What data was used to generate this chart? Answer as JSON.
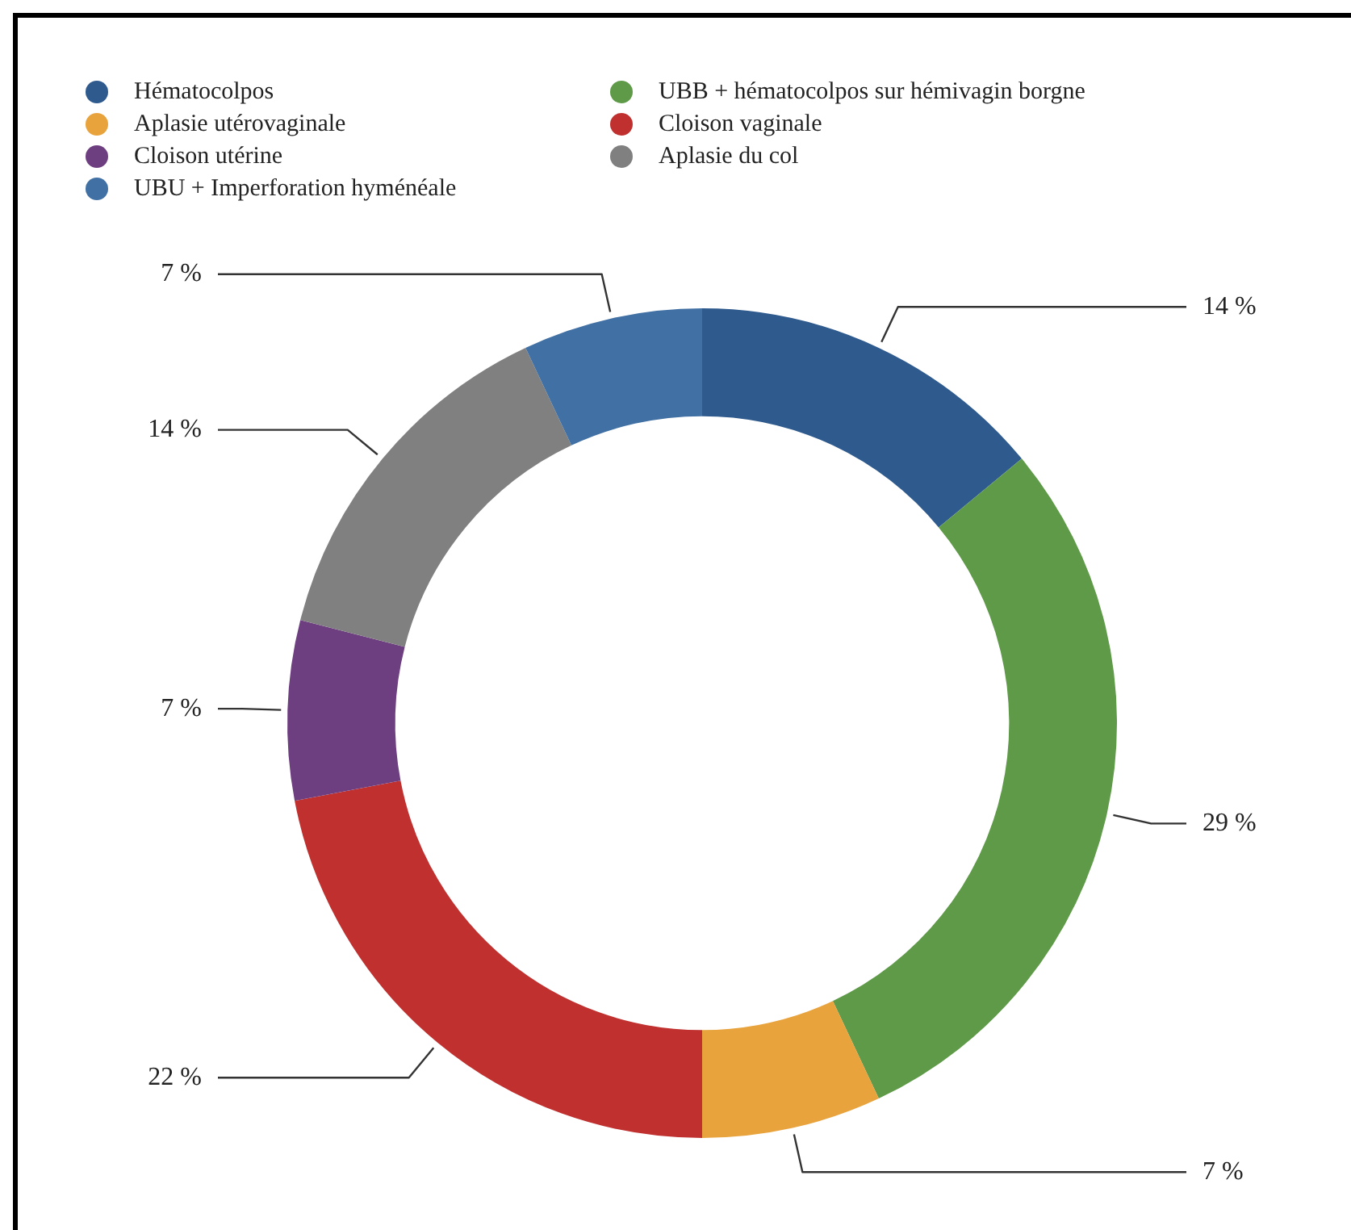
{
  "chart_data": {
    "type": "donut",
    "categories": [
      "Hématocolpos",
      "UBB + hématocolpos sur hémivagin borgne",
      "Aplasie utérovaginale",
      "Cloison vaginale",
      "Cloison utérine",
      "Aplasie du col",
      "UBU + Imperforation hyménéale"
    ],
    "values": [
      14,
      29,
      7,
      22,
      7,
      14,
      7
    ],
    "colors": [
      "#2e5a8e",
      "#5e9a48",
      "#e8a33d",
      "#c0302f",
      "#6e3f80",
      "#808080",
      "#4170a4"
    ],
    "value_labels": [
      "14 %",
      "29 %",
      "7 %",
      "22 %",
      "7 %",
      "14 %",
      "7 %"
    ],
    "legend": "top"
  }
}
